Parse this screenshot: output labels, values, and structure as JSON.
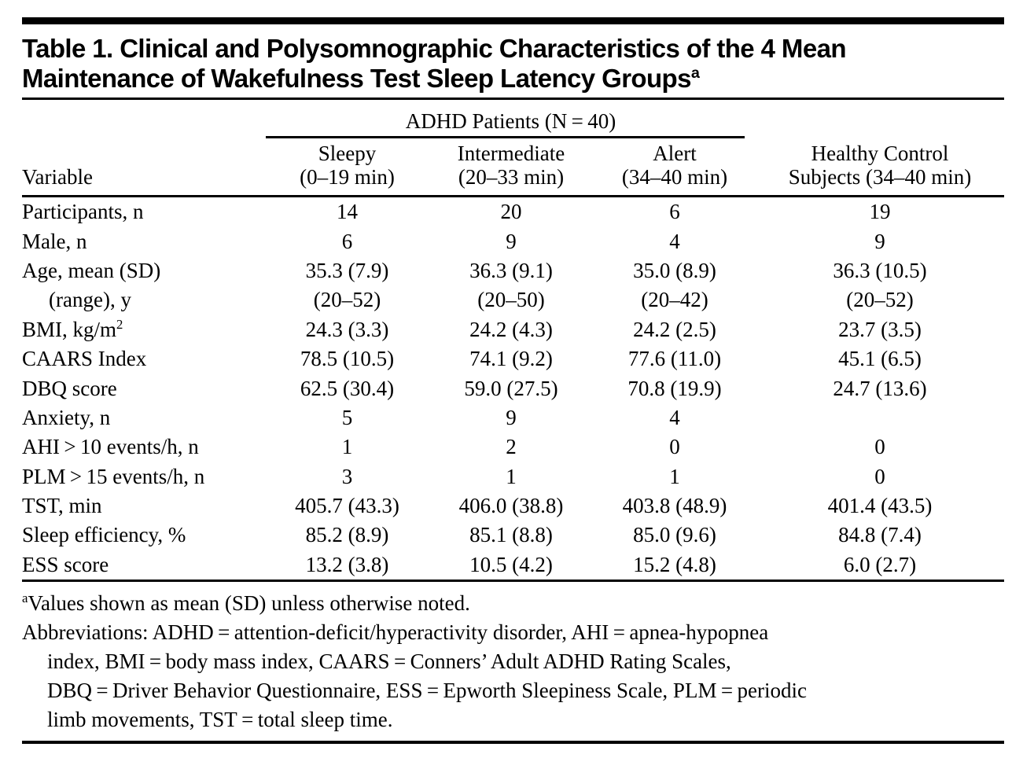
{
  "colors": {
    "text": "#000000",
    "background": "#ffffff",
    "rule": "#000000"
  },
  "title": {
    "line1": "Table 1. Clinical and Polysomnographic Characteristics of the 4 Mean",
    "line2": "Maintenance of Wakefulness Test Sleep Latency Groups",
    "superscript": "a"
  },
  "header": {
    "spanner": "ADHD Patients (N = 40)",
    "variable_label": "Variable",
    "columns": [
      {
        "line1": "Sleepy",
        "line2": "(0–19 min)"
      },
      {
        "line1": "Intermediate",
        "line2": "(20–33 min)"
      },
      {
        "line1": "Alert",
        "line2": "(34–40 min)"
      },
      {
        "line1": "Healthy Control",
        "line2": "Subjects (34–40 min)"
      }
    ]
  },
  "rows": [
    {
      "label": "Participants, n",
      "values": [
        "14",
        "20",
        "6",
        "19"
      ]
    },
    {
      "label": "Male, n",
      "values": [
        "6",
        "9",
        "4",
        "9"
      ]
    },
    {
      "label": "Age, mean (SD)",
      "values": [
        "35.3 (7.9)",
        "36.3 (9.1)",
        "35.0 (8.9)",
        "36.3 (10.5)"
      ]
    },
    {
      "label": "(range), y",
      "values": [
        "(20–52)",
        "(20–50)",
        "(20–42)",
        "(20–52)"
      ]
    },
    {
      "label": "BMI, kg/m",
      "label_sup": "2",
      "values": [
        "24.3 (3.3)",
        "24.2 (4.3)",
        "24.2 (2.5)",
        "23.7 (3.5)"
      ]
    },
    {
      "label": "CAARS Index",
      "values": [
        "78.5 (10.5)",
        "74.1 (9.2)",
        "77.6 (11.0)",
        "45.1 (6.5)"
      ]
    },
    {
      "label": "DBQ score",
      "values": [
        "62.5 (30.4)",
        "59.0 (27.5)",
        "70.8 (19.9)",
        "24.7 (13.6)"
      ]
    },
    {
      "label": "Anxiety, n",
      "values": [
        "5",
        "9",
        "4",
        ""
      ]
    },
    {
      "label": "AHI > 10 events/h, n",
      "values": [
        "1",
        "2",
        "0",
        "0"
      ]
    },
    {
      "label": "PLM > 15 events/h, n",
      "values": [
        "3",
        "1",
        "1",
        "0"
      ]
    },
    {
      "label": "TST, min",
      "values": [
        "405.7 (43.3)",
        "406.0 (38.8)",
        "403.8 (48.9)",
        "401.4 (43.5)"
      ]
    },
    {
      "label": "Sleep efficiency, %",
      "values": [
        "85.2 (8.9)",
        "85.1 (8.8)",
        "85.0 (9.6)",
        "84.8 (7.4)"
      ]
    },
    {
      "label": "ESS score",
      "values": [
        "13.2 (3.8)",
        "10.5 (4.2)",
        "15.2 (4.8)",
        "6.0 (2.7)"
      ]
    }
  ],
  "footnotes": {
    "note_a_marker": "a",
    "note_a_text": "Values shown as mean (SD) unless otherwise noted.",
    "abbrev_line1": "Abbreviations: ADHD = attention-deficit/hyperactivity disorder, AHI = apnea-hypopnea",
    "abbrev_line2": "index, BMI = body mass index, CAARS = Conners’ Adult ADHD Rating Scales,",
    "abbrev_line3": "DBQ = Driver Behavior Questionnaire, ESS = Epworth Sleepiness Scale, PLM = periodic",
    "abbrev_line4": "limb movements, TST = total sleep time."
  }
}
